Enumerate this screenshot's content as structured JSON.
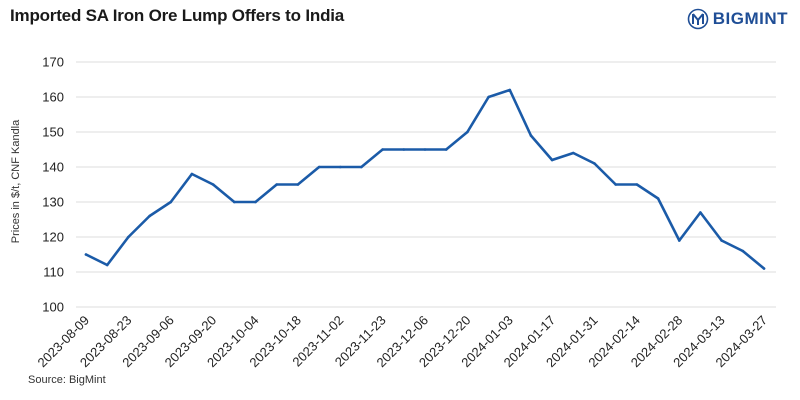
{
  "header": {
    "title": "Imported SA Iron Ore Lump Offers to India",
    "logo_text": "BIGMINT"
  },
  "footer": {
    "source": "Source: BigMint"
  },
  "colors": {
    "line": "#1b5ba8",
    "grid": "#dddddd",
    "logo": "#1f4e96"
  },
  "chart_data": {
    "type": "line",
    "title": "Imported SA Iron Ore Lump Offers to India",
    "xlabel": "",
    "ylabel": "Prices in $/t, CNF Kandla",
    "ylim": [
      100,
      170
    ],
    "yticks": [
      100,
      110,
      120,
      130,
      140,
      150,
      160,
      170
    ],
    "grid": "horizontal",
    "xticks": [
      "2023-08-09",
      "2023-08-23",
      "2023-09-06",
      "2023-09-20",
      "2023-10-04",
      "2023-10-18",
      "2023-11-02",
      "2023-11-23",
      "2023-12-06",
      "2023-12-20",
      "2024-01-03",
      "2024-01-17",
      "2024-01-31",
      "2024-02-14",
      "2024-02-28",
      "2024-03-13",
      "2024-03-27"
    ],
    "series": [
      {
        "name": "",
        "values": [
          115,
          112,
          120,
          126,
          130,
          138,
          135,
          130,
          130,
          135,
          135,
          140,
          140,
          140,
          145,
          145,
          145,
          145,
          150,
          160,
          162,
          149,
          142,
          144,
          141,
          135,
          135,
          131,
          119,
          127,
          119,
          116,
          111
        ]
      }
    ]
  }
}
